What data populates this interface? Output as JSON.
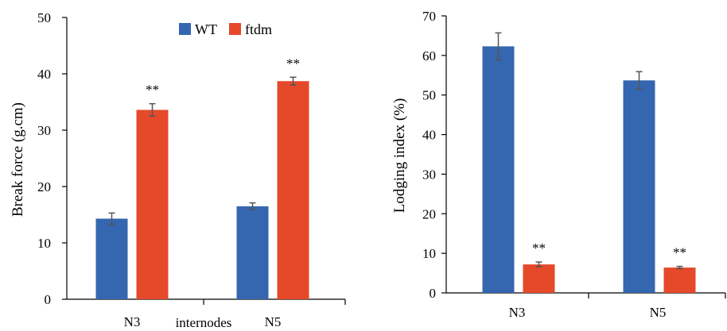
{
  "colors": {
    "WT": "#3566b0",
    "ftdm": "#e5492a",
    "axis": "#000000",
    "errorbar": "#555555"
  },
  "chart_data": [
    {
      "type": "bar",
      "ylabel": "Break force (g.cm)",
      "xlabel": "internodes",
      "ylim": [
        0,
        50
      ],
      "yticks": [
        0,
        10,
        20,
        30,
        40,
        50
      ],
      "categories": [
        "N3",
        "N5"
      ],
      "legend": {
        "placement": "top-center",
        "entries": [
          "WT",
          "ftdm"
        ]
      },
      "series": [
        {
          "name": "WT",
          "values": [
            14.3,
            16.5
          ],
          "errors": [
            1.0,
            0.6
          ],
          "annotations": [
            "",
            ""
          ]
        },
        {
          "name": "ftdm",
          "values": [
            33.6,
            38.7
          ],
          "errors": [
            1.1,
            0.7
          ],
          "annotations": [
            "**",
            "**"
          ]
        }
      ]
    },
    {
      "type": "bar",
      "ylabel": "Lodging index (%)",
      "xlabel": "",
      "ylim": [
        0,
        70
      ],
      "yticks": [
        0,
        10,
        20,
        30,
        40,
        50,
        60,
        70
      ],
      "categories": [
        "N3",
        "N5"
      ],
      "series": [
        {
          "name": "WT",
          "values": [
            62.3,
            53.7
          ],
          "errors": [
            3.4,
            2.2
          ],
          "annotations": [
            "",
            ""
          ]
        },
        {
          "name": "ftdm",
          "values": [
            7.2,
            6.4
          ],
          "errors": [
            0.6,
            0.3
          ],
          "annotations": [
            "**",
            "**"
          ]
        }
      ]
    }
  ]
}
